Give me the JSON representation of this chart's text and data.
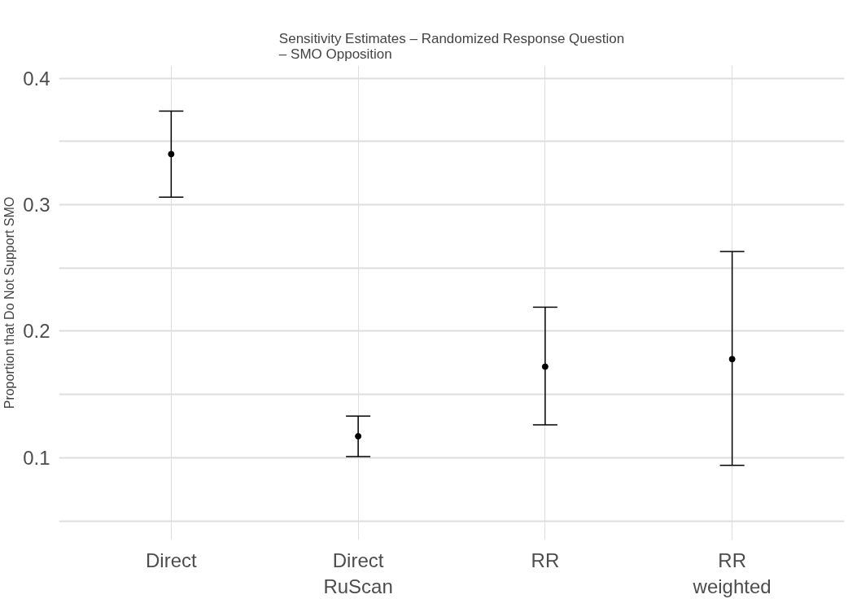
{
  "chart_data": {
    "type": "scatter",
    "title": "Sensitivity Estimates – Randomized Response Question\n– SMO Opposition",
    "ylabel": "Proportion that Do Not Support SMO",
    "categories": [
      "Direct",
      "Direct\nRuScan",
      "RR",
      "RR\nweighted"
    ],
    "values": [
      0.34,
      0.117,
      0.172,
      0.178
    ],
    "errors": [
      [
        0.306,
        0.374
      ],
      [
        0.101,
        0.133
      ],
      [
        0.126,
        0.219
      ],
      [
        0.094,
        0.263
      ]
    ],
    "color": "#000000",
    "marker": "circle",
    "ylim": [
      0.035,
      0.41
    ],
    "yticks": [
      {
        "value": 0.05,
        "label": null
      },
      0.1,
      {
        "value": 0.15,
        "label": null
      },
      0.2,
      {
        "value": 0.25,
        "label": null
      },
      0.3,
      {
        "value": 0.35,
        "label": null
      },
      0.4
    ],
    "grid": true
  }
}
